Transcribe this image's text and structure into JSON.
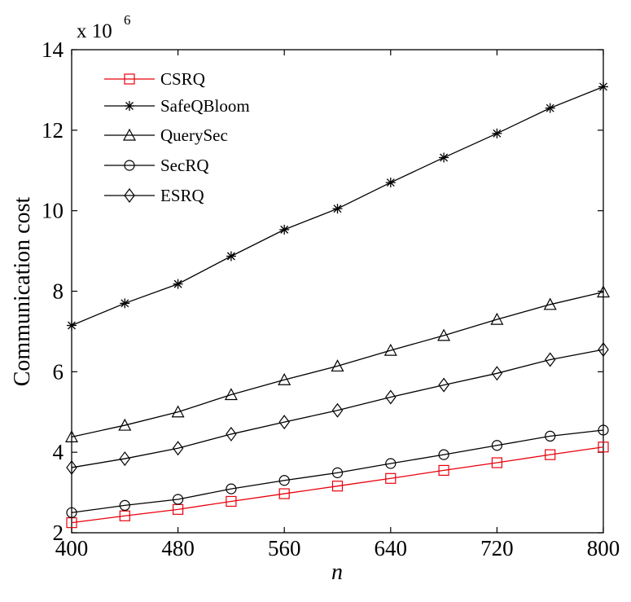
{
  "chart_data": {
    "type": "line",
    "xlabel": "n",
    "ylabel": "Communication cost",
    "y_multiplier": {
      "base": "x 10",
      "exponent": "6"
    },
    "xlim": [
      400,
      800
    ],
    "ylim": [
      2,
      14
    ],
    "x_ticks": [
      400,
      480,
      560,
      640,
      720,
      800
    ],
    "y_ticks": [
      2,
      4,
      6,
      8,
      10,
      12,
      14
    ],
    "x": [
      400,
      440,
      480,
      520,
      560,
      600,
      640,
      680,
      720,
      760,
      800
    ],
    "legend_position": "top-left",
    "grid": false,
    "series": [
      {
        "name": "CSRQ",
        "marker": "square",
        "color": "#e8000b",
        "values": [
          2.25,
          2.42,
          2.58,
          2.78,
          2.97,
          3.16,
          3.35,
          3.55,
          3.74,
          3.94,
          4.13
        ]
      },
      {
        "name": "SafeQBloom",
        "marker": "star",
        "color": "#000000",
        "values": [
          7.15,
          7.7,
          8.18,
          8.87,
          9.53,
          10.05,
          10.7,
          11.32,
          11.92,
          12.55,
          13.08
        ]
      },
      {
        "name": "QuerySec",
        "marker": "triangle",
        "color": "#000000",
        "values": [
          4.38,
          4.67,
          5.0,
          5.43,
          5.8,
          6.14,
          6.53,
          6.9,
          7.3,
          7.67,
          7.98
        ]
      },
      {
        "name": "SecRQ",
        "marker": "circle",
        "color": "#000000",
        "values": [
          2.5,
          2.68,
          2.83,
          3.09,
          3.3,
          3.49,
          3.72,
          3.94,
          4.17,
          4.4,
          4.55
        ]
      },
      {
        "name": "ESRQ",
        "marker": "diamond",
        "color": "#000000",
        "values": [
          3.62,
          3.84,
          4.1,
          4.45,
          4.75,
          5.04,
          5.37,
          5.67,
          5.96,
          6.3,
          6.55
        ]
      }
    ]
  }
}
